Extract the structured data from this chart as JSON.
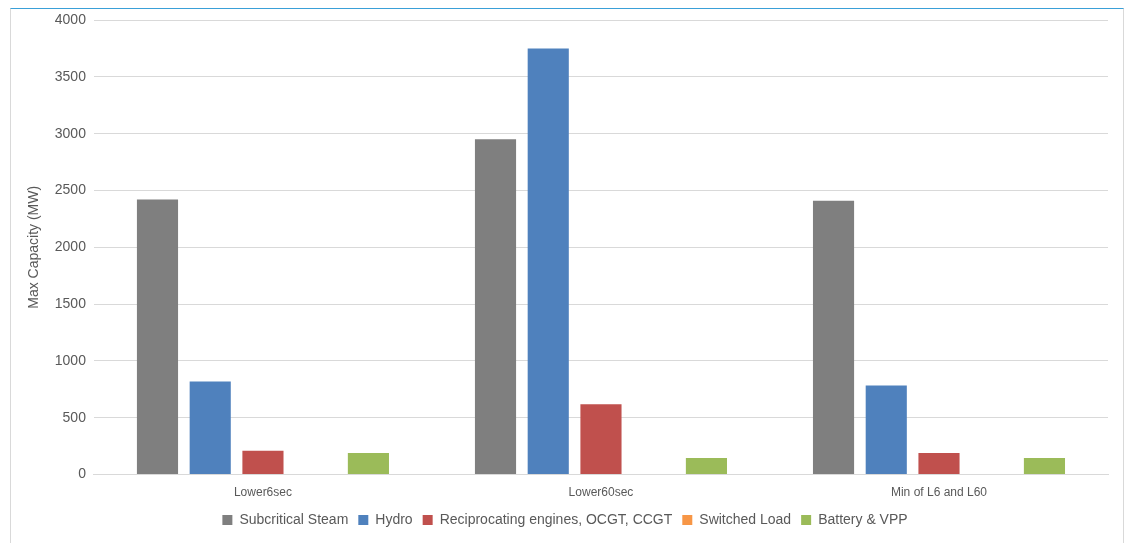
{
  "chart_data": {
    "type": "bar",
    "ylabel": "Max Capacity (MW)",
    "categories": [
      "Lower6sec",
      "Lower60sec",
      "Min of L6 and L60"
    ],
    "series": [
      {
        "name": "Subcritical Steam",
        "color": "#7f7f7f",
        "values": [
          2420,
          2950,
          2410
        ]
      },
      {
        "name": "Hydro",
        "color": "#4f81bd",
        "values": [
          820,
          3750,
          785
        ]
      },
      {
        "name": "Reciprocating engines, OCGT, CCGT",
        "color": "#c0504d",
        "values": [
          210,
          620,
          190
        ]
      },
      {
        "name": "Switched Load",
        "color": "#f79646",
        "values": [
          0,
          0,
          0
        ]
      },
      {
        "name": "Battery & VPP",
        "color": "#9bbb59",
        "values": [
          190,
          145,
          145
        ]
      }
    ],
    "ylim": [
      0,
      4000
    ],
    "yticks": [
      0,
      500,
      1000,
      1500,
      2000,
      2500,
      3000,
      3500,
      4000
    ],
    "grid": "y",
    "legend": "bottom"
  }
}
